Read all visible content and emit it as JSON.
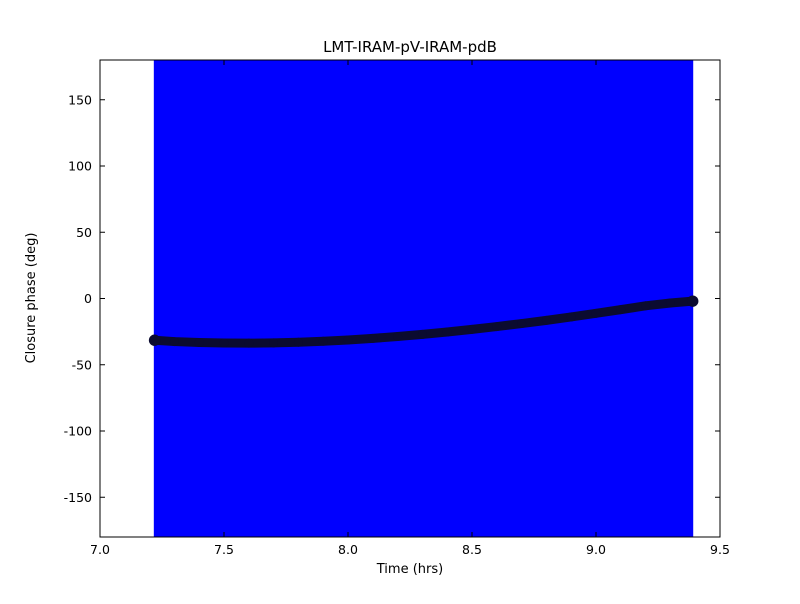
{
  "figure": {
    "background": "#ffffff",
    "frame_color": "#000000"
  },
  "chart_data": {
    "type": "scatter",
    "title": "LMT-IRAM-pV-IRAM-pdB",
    "xlabel": "Time (hrs)",
    "ylabel": "Closure phase (deg)",
    "xlim": [
      7.0,
      9.5
    ],
    "ylim": [
      -180,
      180
    ],
    "xticks": [
      7.0,
      7.5,
      8.0,
      8.5,
      9.0,
      9.5
    ],
    "yticks": [
      -150,
      -100,
      -50,
      0,
      50,
      100,
      150
    ],
    "grid": false,
    "legend": "none",
    "error_band": {
      "x_start": 7.217,
      "x_end": 9.392,
      "y_min": -180,
      "y_max": 180,
      "color": "#0000ff"
    },
    "series": [
      {
        "name": "closure-phase",
        "color": "#0b0b30",
        "marker": "circle",
        "marker_radius": 4.5,
        "x": [
          7.22,
          7.3,
          7.4,
          7.5,
          7.6,
          7.7,
          7.8,
          7.9,
          8.0,
          8.1,
          8.2,
          8.3,
          8.4,
          8.5,
          8.6,
          8.7,
          8.8,
          8.9,
          9.0,
          9.1,
          9.2,
          9.3,
          9.39
        ],
        "y": [
          -31.5,
          -32.5,
          -33.2,
          -33.6,
          -33.7,
          -33.5,
          -33.0,
          -32.3,
          -31.3,
          -30.1,
          -28.7,
          -27.1,
          -25.3,
          -23.3,
          -21.2,
          -18.9,
          -16.5,
          -13.9,
          -11.2,
          -8.4,
          -5.5,
          -3.4,
          -2.0
        ]
      }
    ]
  }
}
